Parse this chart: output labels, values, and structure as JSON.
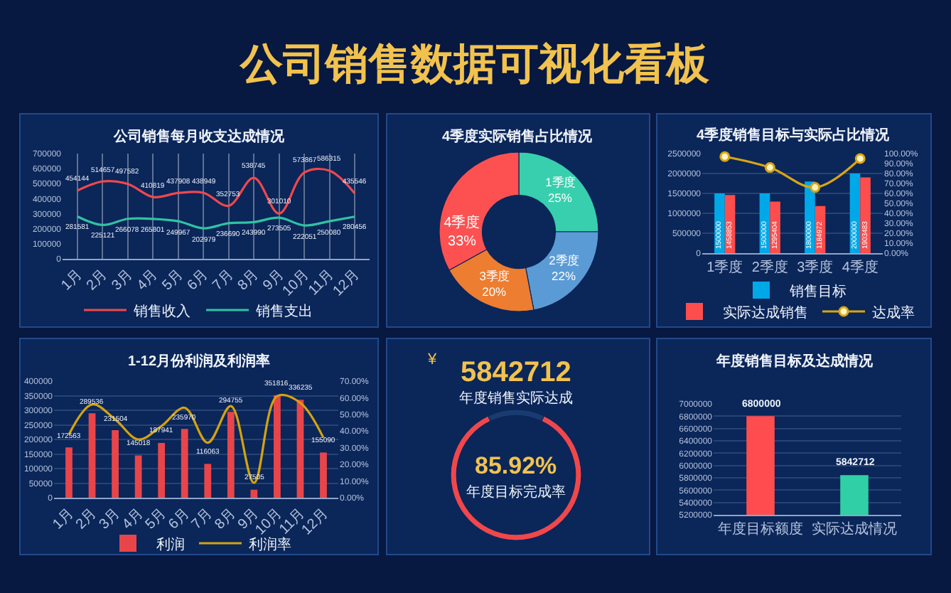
{
  "chart_data": [
    {
      "type": "other",
      "title": "公司销售数据可视化看板"
    },
    {
      "type": "line",
      "title": "公司销售每月收支达成情况",
      "categories": [
        "1月",
        "2月",
        "3月",
        "4月",
        "5月",
        "6月",
        "7月",
        "8月",
        "9月",
        "10月",
        "11月",
        "12月"
      ],
      "series": [
        {
          "name": "销售收入",
          "color": "#f0484d",
          "values": [
            454144,
            514657,
            497582,
            410819,
            437908,
            438949,
            352753,
            538745,
            301010,
            573867,
            586315,
            435546
          ]
        },
        {
          "name": "销售支出",
          "color": "#2fc3a3",
          "values": [
            281581,
            225121,
            266078,
            265801,
            249967,
            202979,
            236690,
            243990,
            273505,
            222051,
            250080,
            280456
          ]
        }
      ],
      "ylim": [
        0,
        700000
      ],
      "yticks": [
        0,
        100000,
        200000,
        300000,
        400000,
        500000,
        600000,
        700000
      ],
      "grid": "x",
      "legend": "bottom",
      "data_labels": true
    },
    {
      "type": "donut",
      "title": "4季度实际销售占比情况",
      "categories": [
        "1季度",
        "2季度",
        "3季度",
        "4季度"
      ],
      "values": [
        25,
        22,
        20,
        33
      ],
      "value_labels": [
        "25%",
        "22%",
        "20%",
        "33%"
      ],
      "colors": [
        "#38cfae",
        "#5b9bd5",
        "#ed7d31",
        "#fd5151"
      ]
    },
    {
      "type": "bar",
      "title": "4季度销售目标与实际占比情况",
      "categories": [
        "1季度",
        "2季度",
        "3季度",
        "4季度"
      ],
      "series": [
        {
          "name": "销售目标",
          "color": "#00a8e8",
          "values": [
            1500000,
            1500000,
            1800000,
            2000000
          ],
          "value_labels": [
            "1500000",
            "1500000",
            "1800000",
            "2000000"
          ]
        },
        {
          "name": "实际达成销售",
          "color": "#fd4d4d",
          "values": [
            1458853,
            1295404,
            1184972,
            1903483
          ],
          "value_labels": [
            "1458853",
            "1295404",
            "1184972",
            "1903483"
          ]
        },
        {
          "name": "达成率",
          "type": "line",
          "axis": "y2",
          "color": "#d9a514",
          "marker": "circle",
          "values": [
            97,
            86,
            66,
            95
          ]
        }
      ],
      "ylim": [
        0,
        2500000
      ],
      "yticks": [
        0,
        500000,
        1000000,
        1500000,
        2000000,
        2500000
      ],
      "y2lim": [
        0,
        100
      ],
      "y2ticks": [
        {
          "value": 0,
          "label": "0.00%"
        },
        {
          "value": 10,
          "label": "10.00%"
        },
        {
          "value": 20,
          "label": "20.00%"
        },
        {
          "value": 30,
          "label": "30.00%"
        },
        {
          "value": 40,
          "label": "40.00%"
        },
        {
          "value": 50,
          "label": "50.00%"
        },
        {
          "value": 60,
          "label": "60.00%"
        },
        {
          "value": 70,
          "label": "70.00%"
        },
        {
          "value": 80,
          "label": "80.00%"
        },
        {
          "value": 90,
          "label": "90.00%"
        },
        {
          "value": 100,
          "label": "100.00%"
        }
      ],
      "grid": "y",
      "legend": "bottom"
    },
    {
      "type": "bar",
      "title": "1-12月份利润及利润率",
      "categories": [
        "1月",
        "2月",
        "3月",
        "4月",
        "5月",
        "6月",
        "7月",
        "8月",
        "9月",
        "10月",
        "11月",
        "12月"
      ],
      "series": [
        {
          "name": "利润",
          "color": "#e8454a",
          "values": [
            172563,
            289536,
            231504,
            145018,
            187941,
            235970,
            116063,
            294755,
            27505,
            351816,
            336235,
            155090
          ],
          "value_labels": [
            "172563",
            "289536",
            "231504",
            "145018",
            "187941",
            "235970",
            "116063",
            "294755",
            "27505",
            "351816",
            "336235",
            "155090"
          ]
        },
        {
          "name": "利润率",
          "type": "line",
          "axis": "y2",
          "color": "#d4a30e",
          "values": [
            38,
            56,
            47,
            35,
            43,
            54,
            33,
            55,
            9,
            61,
            57,
            36
          ]
        }
      ],
      "ylim": [
        0,
        400000
      ],
      "yticks": [
        0,
        50000,
        100000,
        150000,
        200000,
        250000,
        300000,
        350000,
        400000
      ],
      "y2lim": [
        0,
        70
      ],
      "y2ticks": [
        {
          "value": 0,
          "label": "0.00%"
        },
        {
          "value": 10,
          "label": "10.00%"
        },
        {
          "value": 20,
          "label": "20.00%"
        },
        {
          "value": 30,
          "label": "30.00%"
        },
        {
          "value": 40,
          "label": "40.00%"
        },
        {
          "value": 50,
          "label": "50.00%"
        },
        {
          "value": 60,
          "label": "60.00%"
        },
        {
          "value": 70,
          "label": "70.00%"
        }
      ],
      "grid": "y",
      "legend": "bottom"
    },
    {
      "type": "other",
      "title": "5842712",
      "subtitle": "年度销售实际达成",
      "annotations": [
        "¥"
      ]
    },
    {
      "type": "donut",
      "categories": [
        null,
        null
      ],
      "values": [
        85.92,
        14.08
      ],
      "colors": [
        "#f0474b",
        "#1a3b70"
      ],
      "annotations": [
        "85.92%",
        "年度目标完成率"
      ]
    },
    {
      "type": "bar",
      "title": "年度销售目标及达成情况",
      "categories": [
        "年度目标额度",
        "实际达成情况"
      ],
      "values": [
        6800000,
        5842712
      ],
      "colors": [
        "#ff4d4f",
        "#30cfa6"
      ],
      "ylim": [
        5200000,
        7000000
      ],
      "yticks": [
        5200000,
        5400000,
        5600000,
        5800000,
        6000000,
        6200000,
        6400000,
        6600000,
        6800000,
        7000000
      ],
      "grid": "y",
      "data_labels": true
    }
  ]
}
